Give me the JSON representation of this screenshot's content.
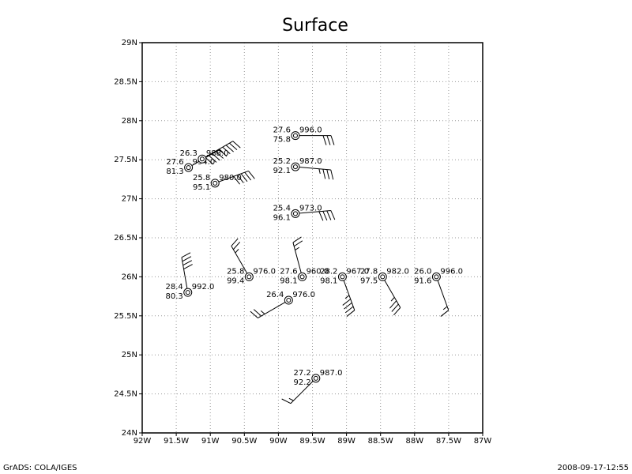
{
  "chart_data": {
    "type": "station_plot",
    "title": "Surface",
    "xlim": [
      -92,
      -87
    ],
    "ylim": [
      24,
      29
    ],
    "xticks": [
      {
        "value": -92,
        "label": "92W"
      },
      {
        "value": -91.5,
        "label": "91.5W"
      },
      {
        "value": -91,
        "label": "91W"
      },
      {
        "value": -90.5,
        "label": "90.5W"
      },
      {
        "value": -90,
        "label": "90W"
      },
      {
        "value": -89.5,
        "label": "89.5W"
      },
      {
        "value": -89,
        "label": "89W"
      },
      {
        "value": -88.5,
        "label": "88.5W"
      },
      {
        "value": -88,
        "label": "88W"
      },
      {
        "value": -87.5,
        "label": "87.5W"
      },
      {
        "value": -87,
        "label": "87W"
      }
    ],
    "yticks": [
      {
        "value": 24,
        "label": "24N"
      },
      {
        "value": 24.5,
        "label": "24.5N"
      },
      {
        "value": 25,
        "label": "25N"
      },
      {
        "value": 25.5,
        "label": "25.5N"
      },
      {
        "value": 26,
        "label": "26N"
      },
      {
        "value": 26.5,
        "label": "26.5N"
      },
      {
        "value": 27,
        "label": "27N"
      },
      {
        "value": 27.5,
        "label": "27.5N"
      },
      {
        "value": 28,
        "label": "28N"
      },
      {
        "value": 28.5,
        "label": "28.5N"
      },
      {
        "value": 29,
        "label": "29N"
      }
    ],
    "grid": true,
    "color": "#000000",
    "stations": [
      {
        "lon": -91.32,
        "lat": 27.4,
        "temp": "27.6",
        "humid": "81.3",
        "pres": "994.0",
        "wind_dir": 60,
        "wind_speed": 50
      },
      {
        "lon": -91.12,
        "lat": 27.51,
        "temp": "26.3",
        "pres": "988.0",
        "wind_dir": 60,
        "wind_speed": 45
      },
      {
        "lon": -90.93,
        "lat": 27.2,
        "temp": "25.8",
        "humid": "95.1",
        "pres": "980.0",
        "wind_dir": 70,
        "wind_speed": 50
      },
      {
        "lon": -89.75,
        "lat": 27.81,
        "temp": "27.6",
        "humid": "75.8",
        "pres": "996.0",
        "wind_dir": 90,
        "wind_speed": 30
      },
      {
        "lon": -89.75,
        "lat": 27.41,
        "temp": "25.2",
        "humid": "92.1",
        "pres": "987.0",
        "wind_dir": 95,
        "wind_speed": 35
      },
      {
        "lon": -89.75,
        "lat": 26.81,
        "temp": "25.4",
        "humid": "96.1",
        "pres": "973.0",
        "wind_dir": 85,
        "wind_speed": 40
      },
      {
        "lon": -91.33,
        "lat": 25.8,
        "temp": "28.4",
        "humid": "80.3",
        "pres": "992.0",
        "wind_dir": 350,
        "wind_speed": 40
      },
      {
        "lon": -90.43,
        "lat": 26.0,
        "temp": "25.8",
        "humid": "99.4",
        "pres": "976.0",
        "wind_dir": 330,
        "wind_speed": 25
      },
      {
        "lon": -89.65,
        "lat": 26.0,
        "temp": "27.6",
        "humid": "98.1",
        "pres": "960.0",
        "wind_dir": 345,
        "wind_speed": 25
      },
      {
        "lon": -89.06,
        "lat": 26.0,
        "temp": "28.2",
        "humid": "98.1",
        "pres": "967.0",
        "wind_dir": 160,
        "wind_speed": 45
      },
      {
        "lon": -88.47,
        "lat": 26.0,
        "temp": "27.8",
        "humid": "97.5",
        "pres": "982.0",
        "wind_dir": 150,
        "wind_speed": 35
      },
      {
        "lon": -87.68,
        "lat": 26.0,
        "temp": "26.0",
        "humid": "91.6",
        "pres": "996.0",
        "wind_dir": 160,
        "wind_speed": 15
      },
      {
        "lon": -89.85,
        "lat": 25.7,
        "temp": "26.4",
        "pres": "976.0",
        "wind_dir": 240,
        "wind_speed": 25
      },
      {
        "lon": -89.45,
        "lat": 24.7,
        "temp": "27.2",
        "humid": "92.2",
        "pres": "987.0",
        "wind_dir": 225,
        "wind_speed": 15
      }
    ],
    "footer_left": "GrADS: COLA/IGES",
    "footer_right": "2008-09-17-12:55"
  }
}
